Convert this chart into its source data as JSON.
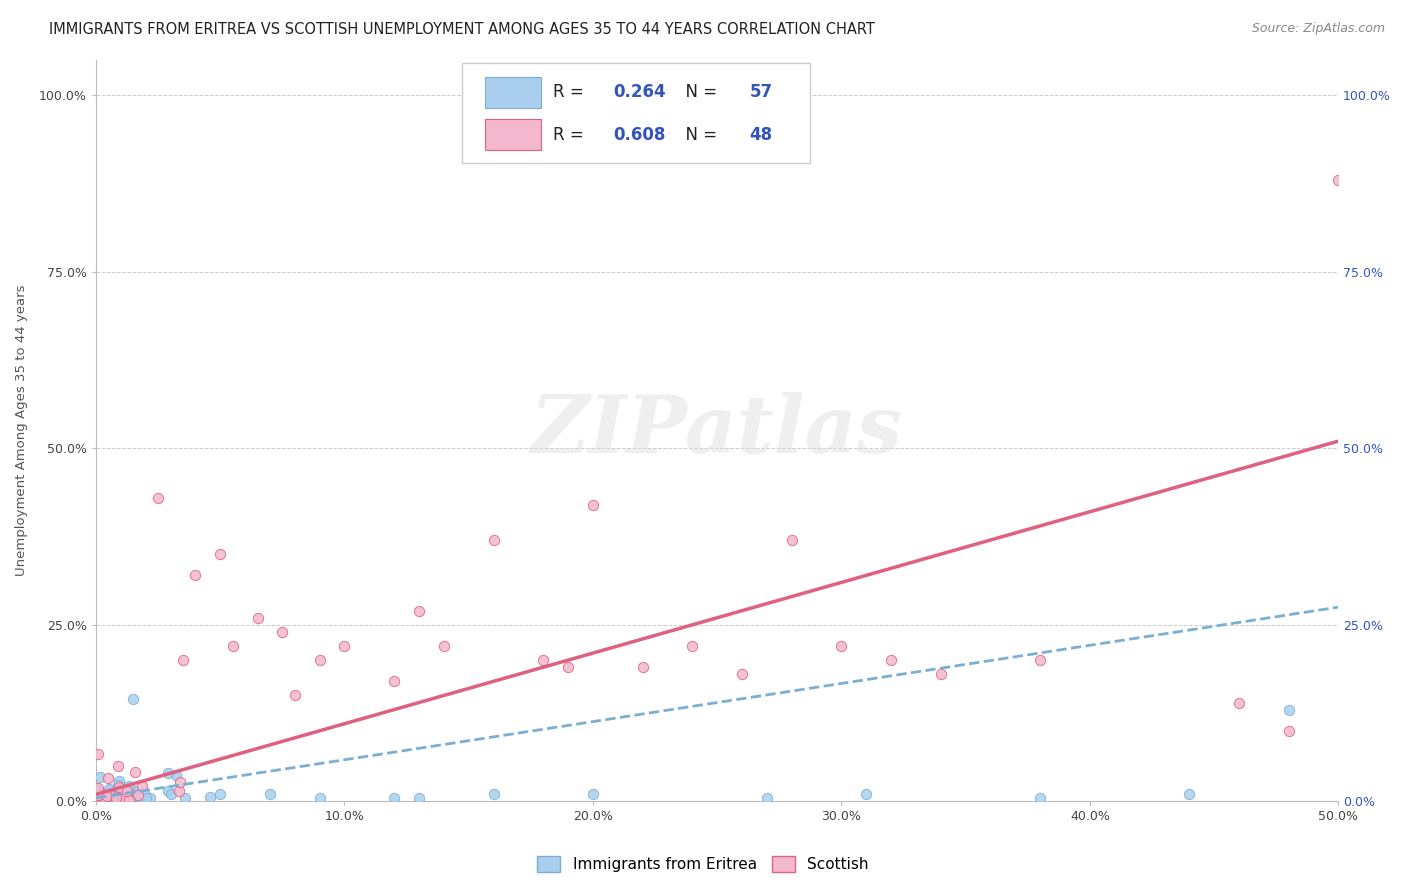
{
  "title": "IMMIGRANTS FROM ERITREA VS SCOTTISH UNEMPLOYMENT AMONG AGES 35 TO 44 YEARS CORRELATION CHART",
  "source": "Source: ZipAtlas.com",
  "ylabel": "Unemployment Among Ages 35 to 44 years",
  "R1": 0.264,
  "N1": 57,
  "R2": 0.608,
  "N2": 48,
  "color_blue": "#AACFEE",
  "color_pink": "#F4B8CE",
  "color_blue_line": "#7AAFD4",
  "color_pink_line": "#E06080",
  "xmin": 0.0,
  "xmax": 0.5,
  "ymin": 0.0,
  "ymax": 1.05,
  "x_tick_vals": [
    0.0,
    0.1,
    0.2,
    0.3,
    0.4,
    0.5
  ],
  "x_tick_labels": [
    "0.0%",
    "10.0%",
    "20.0%",
    "30.0%",
    "40.0%",
    "50.0%"
  ],
  "y_tick_vals": [
    0.0,
    0.25,
    0.5,
    0.75,
    1.0
  ],
  "y_tick_labels": [
    "0.0%",
    "25.0%",
    "50.0%",
    "75.0%",
    "100.0%"
  ],
  "legend_label_1": "Immigrants from Eritrea",
  "legend_label_2": "Scottish",
  "background_color": "#FFFFFF",
  "grid_color": "#CCCCCC",
  "watermark_text": "ZIPatlas",
  "title_color": "#222222",
  "source_color": "#888888",
  "label_color": "#3355BB",
  "blue_line_start_y": 0.005,
  "blue_line_end_y": 0.275,
  "pink_line_start_y": 0.01,
  "pink_line_end_y": 0.51
}
